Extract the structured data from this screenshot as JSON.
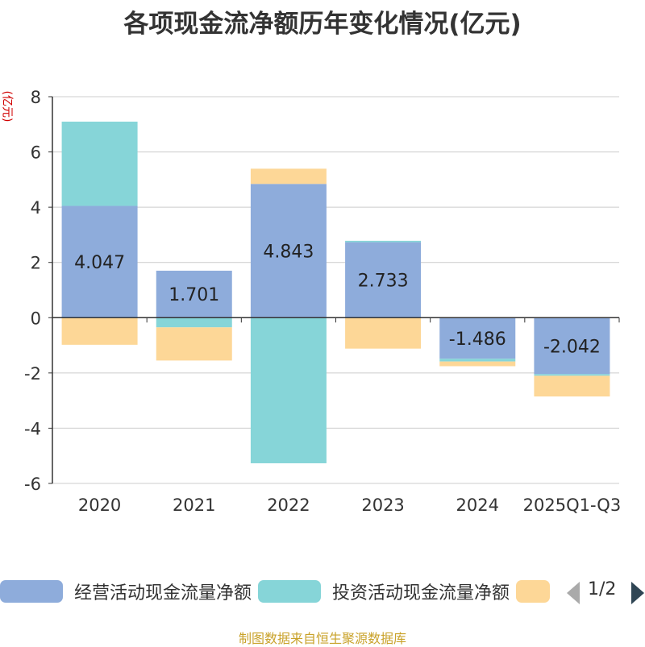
{
  "chart_data": {
    "type": "bar",
    "stacked": true,
    "title": "各项现金流净额历年变化情况(亿元)",
    "ylabel": "(亿元)",
    "xlabel": "",
    "ylim": [
      -6,
      8
    ],
    "yticks": [
      -6,
      -4,
      -2,
      0,
      2,
      4,
      6,
      8
    ],
    "grid": true,
    "categories": [
      "2020",
      "2021",
      "2022",
      "2023",
      "2024",
      "2025Q1-Q3"
    ],
    "series": [
      {
        "name": "经营活动现金流量净额",
        "color": "#8eacdb",
        "values": [
          4.047,
          1.701,
          4.843,
          2.733,
          -1.486,
          -2.042
        ],
        "labels": [
          "4.047",
          "1.701",
          "4.843",
          "2.733",
          "-1.486",
          "-2.042"
        ]
      },
      {
        "name": "投资活动现金流量净额",
        "color": "#86d5d8",
        "values": [
          3.05,
          -0.35,
          -5.27,
          0.05,
          -0.1,
          -0.06
        ]
      },
      {
        "name": "",
        "color": "#fdd797",
        "values": [
          -0.98,
          -1.2,
          0.55,
          -1.12,
          -0.17,
          -0.75
        ]
      }
    ],
    "legend": {
      "page": "1/2"
    },
    "source": "制图数据来自恒生聚源数据库"
  }
}
